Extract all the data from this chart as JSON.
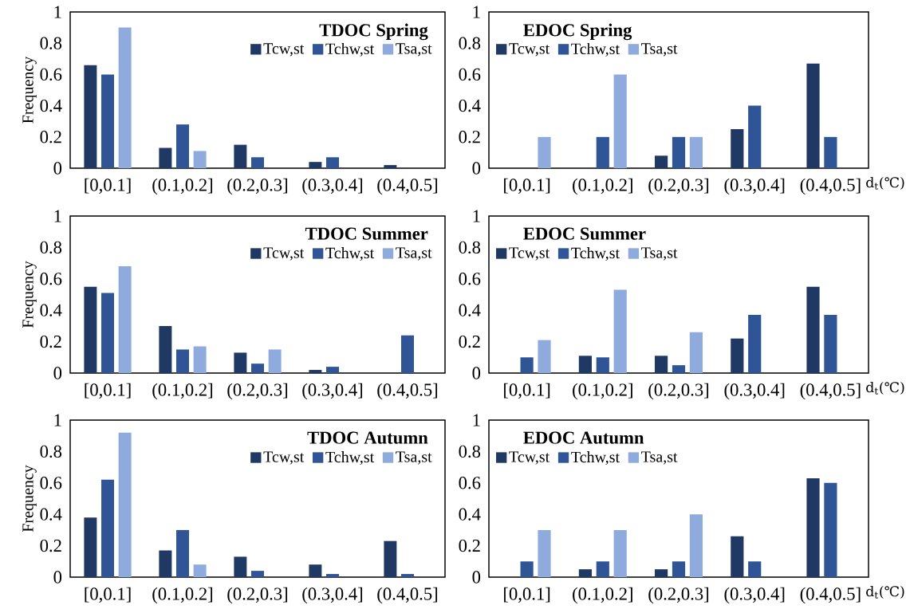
{
  "chart_data": [
    {
      "type": "bar",
      "title": "TDOC Spring",
      "ylabel": "Frequency",
      "categories": [
        "[0,0.1]",
        "(0.1,0.2]",
        "(0.2,0.3]",
        "(0.3,0.4]",
        "(0.4,0.5]"
      ],
      "ylim": [
        0,
        1
      ],
      "yticks": [
        0,
        0.2,
        0.4,
        0.6,
        0.8,
        1
      ],
      "legend": "top right",
      "series": [
        {
          "name": "Tcw,st",
          "color": "#203864",
          "values": [
            0.66,
            0.13,
            0.15,
            0.04,
            0.02
          ]
        },
        {
          "name": "Tchw,st",
          "color": "#2f5597",
          "values": [
            0.6,
            0.28,
            0.07,
            0.07,
            0
          ]
        },
        {
          "name": "Tsa,st",
          "color": "#8faadc",
          "values": [
            0.9,
            0.11,
            0,
            0,
            0
          ]
        }
      ]
    },
    {
      "type": "bar",
      "title": "EDOC Spring",
      "xlabel": "d$_{t}$(℃)",
      "categories": [
        "[0,0.1]",
        "(0.1,0.2]",
        "(0.2,0.3]",
        "(0.3,0.4]",
        "(0.4,0.5]"
      ],
      "ylim": [
        0,
        1
      ],
      "yticks": [
        0,
        0.2,
        0.4,
        0.6,
        0.8,
        1
      ],
      "legend": "top left",
      "series": [
        {
          "name": "Tcw,st",
          "color": "#203864",
          "values": [
            0,
            0,
            0.08,
            0.25,
            0.67
          ]
        },
        {
          "name": "Tchw,st",
          "color": "#2f5597",
          "values": [
            0,
            0.2,
            0.2,
            0.4,
            0.2
          ]
        },
        {
          "name": "Tsa,st",
          "color": "#8faadc",
          "values": [
            0.2,
            0.6,
            0.2,
            0,
            0
          ]
        }
      ]
    },
    {
      "type": "bar",
      "title": "TDOC Summer",
      "ylabel": "Frequency",
      "categories": [
        "[0,0.1]",
        "(0.1,0.2]",
        "(0.2,0.3]",
        "(0.3,0.4]",
        "(0.4,0.5]"
      ],
      "ylim": [
        0,
        1
      ],
      "yticks": [
        0,
        0.2,
        0.4,
        0.6,
        0.8,
        1
      ],
      "legend": "top right",
      "series": [
        {
          "name": "Tcw,st",
          "color": "#203864",
          "values": [
            0.55,
            0.3,
            0.13,
            0.02,
            0
          ]
        },
        {
          "name": "Tchw,st",
          "color": "#2f5597",
          "values": [
            0.51,
            0.15,
            0.06,
            0.04,
            0.24
          ]
        },
        {
          "name": "Tsa,st",
          "color": "#8faadc",
          "values": [
            0.68,
            0.17,
            0.15,
            0,
            0
          ]
        }
      ]
    },
    {
      "type": "bar",
      "title": "EDOC Summer",
      "xlabel": "d$_{t}$(℃)",
      "categories": [
        "[0,0.1]",
        "(0.1,0.2]",
        "(0.2,0.3]",
        "(0.3,0.4]",
        "(0.4,0.5]"
      ],
      "ylim": [
        0,
        1
      ],
      "yticks": [
        0,
        0.2,
        0.4,
        0.6,
        0.8,
        1
      ],
      "legend": "top left",
      "series": [
        {
          "name": "Tcw,st",
          "color": "#203864",
          "values": [
            0,
            0.11,
            0.11,
            0.22,
            0.55
          ]
        },
        {
          "name": "Tchw,st",
          "color": "#2f5597",
          "values": [
            0.1,
            0.1,
            0.05,
            0.37,
            0.37
          ]
        },
        {
          "name": "Tsa,st",
          "color": "#8faadc",
          "values": [
            0.21,
            0.53,
            0.26,
            0,
            0
          ]
        }
      ]
    },
    {
      "type": "bar",
      "title": "TDOC Autumn",
      "ylabel": "Frequency",
      "categories": [
        "[0,0.1]",
        "(0.1,0.2]",
        "(0.2,0.3]",
        "(0.3,0.4]",
        "(0.4,0.5]"
      ],
      "ylim": [
        0,
        1
      ],
      "yticks": [
        0,
        0.2,
        0.4,
        0.6,
        0.8,
        1
      ],
      "legend": "top right",
      "series": [
        {
          "name": "Tcw,st",
          "color": "#203864",
          "values": [
            0.38,
            0.17,
            0.13,
            0.08,
            0.23
          ]
        },
        {
          "name": "Tchw,st",
          "color": "#2f5597",
          "values": [
            0.62,
            0.3,
            0.04,
            0.02,
            0.02
          ]
        },
        {
          "name": "Tsa,st",
          "color": "#8faadc",
          "values": [
            0.92,
            0.08,
            0,
            0,
            0
          ]
        }
      ]
    },
    {
      "type": "bar",
      "title": "EDOC Autumn",
      "xlabel": "d$_{t}$(℃)",
      "categories": [
        "[0,0.1]",
        "(0.1,0.2]",
        "(0.2,0.3]",
        "(0.3,0.4]",
        "(0.4,0.5]"
      ],
      "ylim": [
        0,
        1
      ],
      "yticks": [
        0,
        0.2,
        0.4,
        0.6,
        0.8,
        1
      ],
      "legend": "top left",
      "series": [
        {
          "name": "Tcw,st",
          "color": "#203864",
          "values": [
            0,
            0.05,
            0.05,
            0.26,
            0.63
          ]
        },
        {
          "name": "Tchw,st",
          "color": "#2f5597",
          "values": [
            0.1,
            0.1,
            0.1,
            0.1,
            0.6
          ]
        },
        {
          "name": "Tsa,st",
          "color": "#8faadc",
          "values": [
            0.3,
            0.3,
            0.4,
            0,
            0
          ]
        }
      ]
    }
  ]
}
